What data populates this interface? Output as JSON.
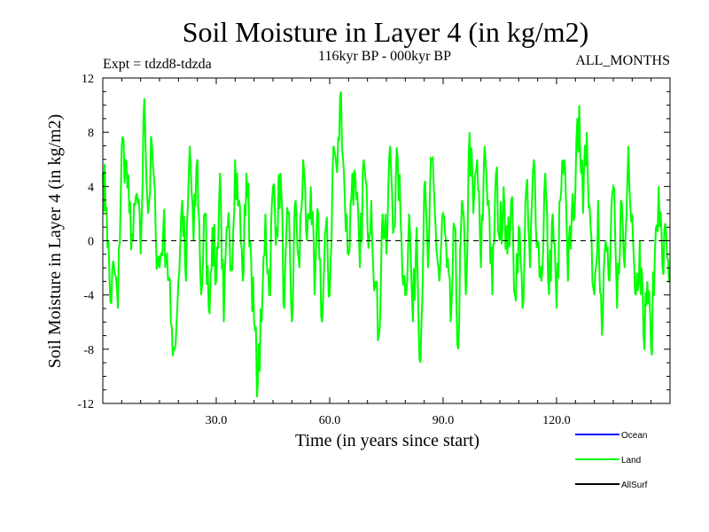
{
  "chart_data": {
    "type": "line",
    "title": "Soil Moisture in Layer 4 (in kg/m2)",
    "subtitle": "116kyr BP - 000kyr BP",
    "left_note": "Expt = tdzd8-tdzda",
    "right_note": "ALL_MONTHS",
    "xlabel": "Time (in years since start)",
    "ylabel": "Soil Moisture in Layer 4 (in kg/m2)",
    "xlim": [
      0,
      150
    ],
    "ylim": [
      -12,
      12
    ],
    "x_ticks": [
      30,
      60,
      90,
      120
    ],
    "x_tick_labels": [
      "30.0",
      "60.0",
      "90.0",
      "120.0"
    ],
    "y_ticks": [
      -12,
      -8,
      -4,
      0,
      4,
      8,
      12
    ],
    "y_tick_labels": [
      "-12",
      "-8",
      "-4",
      "0",
      "4",
      "8",
      "12"
    ],
    "zero_line": 0,
    "x_step": 0.25,
    "series": [
      {
        "name": "Land",
        "color": "#00ff00",
        "anchors": [
          [
            0,
            5
          ],
          [
            1,
            2.5
          ],
          [
            2,
            -4.5
          ],
          [
            3,
            -2
          ],
          [
            4,
            -5
          ],
          [
            5,
            7
          ],
          [
            6,
            6
          ],
          [
            7,
            2
          ],
          [
            8,
            0
          ],
          [
            9,
            3.5
          ],
          [
            10,
            -1
          ],
          [
            11,
            10.5
          ],
          [
            12,
            2
          ],
          [
            13,
            7
          ],
          [
            14,
            0.5
          ],
          [
            15,
            -2
          ],
          [
            16,
            1
          ],
          [
            17,
            -1
          ],
          [
            18,
            -6
          ],
          [
            19,
            -8
          ],
          [
            20,
            -3
          ],
          [
            21,
            3
          ],
          [
            22,
            -3
          ],
          [
            23,
            7
          ],
          [
            24,
            0
          ],
          [
            25,
            6
          ],
          [
            26,
            -4
          ],
          [
            27,
            2
          ],
          [
            28,
            -5
          ],
          [
            29,
            1
          ],
          [
            30,
            -3
          ],
          [
            31,
            5
          ],
          [
            32,
            -6
          ],
          [
            33,
            1
          ],
          [
            34,
            -2
          ],
          [
            35,
            6
          ],
          [
            36,
            3
          ],
          [
            37,
            -3
          ],
          [
            38,
            5
          ],
          [
            39,
            0
          ],
          [
            40,
            -6
          ],
          [
            41,
            -10.5
          ],
          [
            42,
            -6
          ],
          [
            43,
            2
          ],
          [
            44,
            -4
          ],
          [
            45,
            4
          ],
          [
            46,
            1
          ],
          [
            47,
            5
          ],
          [
            48,
            -5
          ],
          [
            49,
            2
          ],
          [
            50,
            -6
          ],
          [
            51,
            3
          ],
          [
            52,
            -2
          ],
          [
            53,
            6
          ],
          [
            54,
            0
          ],
          [
            55,
            4
          ],
          [
            56,
            -4
          ],
          [
            57,
            2
          ],
          [
            58,
            -6
          ],
          [
            59,
            1
          ],
          [
            60,
            -4
          ],
          [
            61,
            7
          ],
          [
            62,
            5
          ],
          [
            63,
            11
          ],
          [
            64,
            3
          ],
          [
            65,
            -1
          ],
          [
            66,
            5
          ],
          [
            67,
            3
          ],
          [
            68,
            -2
          ],
          [
            69,
            6
          ],
          [
            70,
            1
          ],
          [
            71,
            3
          ],
          [
            72,
            -3
          ],
          [
            73,
            -7
          ],
          [
            74,
            2
          ],
          [
            75,
            -1
          ],
          [
            76,
            7
          ],
          [
            77,
            1
          ],
          [
            78,
            6
          ],
          [
            79,
            0
          ],
          [
            80,
            -4
          ],
          [
            81,
            2
          ],
          [
            82,
            -6
          ],
          [
            83,
            1
          ],
          [
            84,
            -9
          ],
          [
            85,
            4
          ],
          [
            86,
            -2
          ],
          [
            87,
            6
          ],
          [
            88,
            1
          ],
          [
            89,
            -3
          ],
          [
            90,
            2
          ],
          [
            91,
            -2
          ],
          [
            92,
            -6
          ],
          [
            93,
            1
          ],
          [
            94,
            -8
          ],
          [
            95,
            3
          ],
          [
            96,
            -4
          ],
          [
            97,
            8
          ],
          [
            98,
            2
          ],
          [
            99,
            6
          ],
          [
            100,
            -2
          ],
          [
            101,
            7
          ],
          [
            102,
            3
          ],
          [
            103,
            -4
          ],
          [
            104,
            5
          ],
          [
            105,
            0
          ],
          [
            106,
            4
          ],
          [
            107,
            -1
          ],
          [
            108,
            3
          ],
          [
            109,
            -4
          ],
          [
            110,
            1
          ],
          [
            111,
            -5
          ],
          [
            112,
            4
          ],
          [
            113,
            -2
          ],
          [
            114,
            6
          ],
          [
            115,
            0
          ],
          [
            116,
            -3
          ],
          [
            117,
            5
          ],
          [
            118,
            -4
          ],
          [
            119,
            2
          ],
          [
            120,
            -5
          ],
          [
            121,
            3
          ],
          [
            122,
            6
          ],
          [
            123,
            -3
          ],
          [
            124,
            2
          ],
          [
            125,
            4
          ],
          [
            126,
            10
          ],
          [
            127,
            2
          ],
          [
            128,
            8
          ],
          [
            129,
            1
          ],
          [
            130,
            -4
          ],
          [
            131,
            3
          ],
          [
            132,
            -7
          ],
          [
            133,
            0
          ],
          [
            134,
            -3
          ],
          [
            135,
            4
          ],
          [
            136,
            -5
          ],
          [
            137,
            3
          ],
          [
            138,
            -2
          ],
          [
            139,
            7
          ],
          [
            140,
            2
          ],
          [
            141,
            -4
          ],
          [
            142,
            0
          ],
          [
            143,
            -7
          ],
          [
            144,
            -3
          ],
          [
            145,
            -8
          ],
          [
            146,
            -1
          ],
          [
            147,
            4
          ],
          [
            148,
            -2
          ],
          [
            149,
            0.5
          ],
          [
            150,
            -3
          ]
        ]
      }
    ],
    "legend": [
      {
        "label": "Ocean",
        "color": "#0000ff"
      },
      {
        "label": "Land",
        "color": "#00ff00"
      },
      {
        "label": "AllSurf",
        "color": "#000000"
      }
    ]
  }
}
